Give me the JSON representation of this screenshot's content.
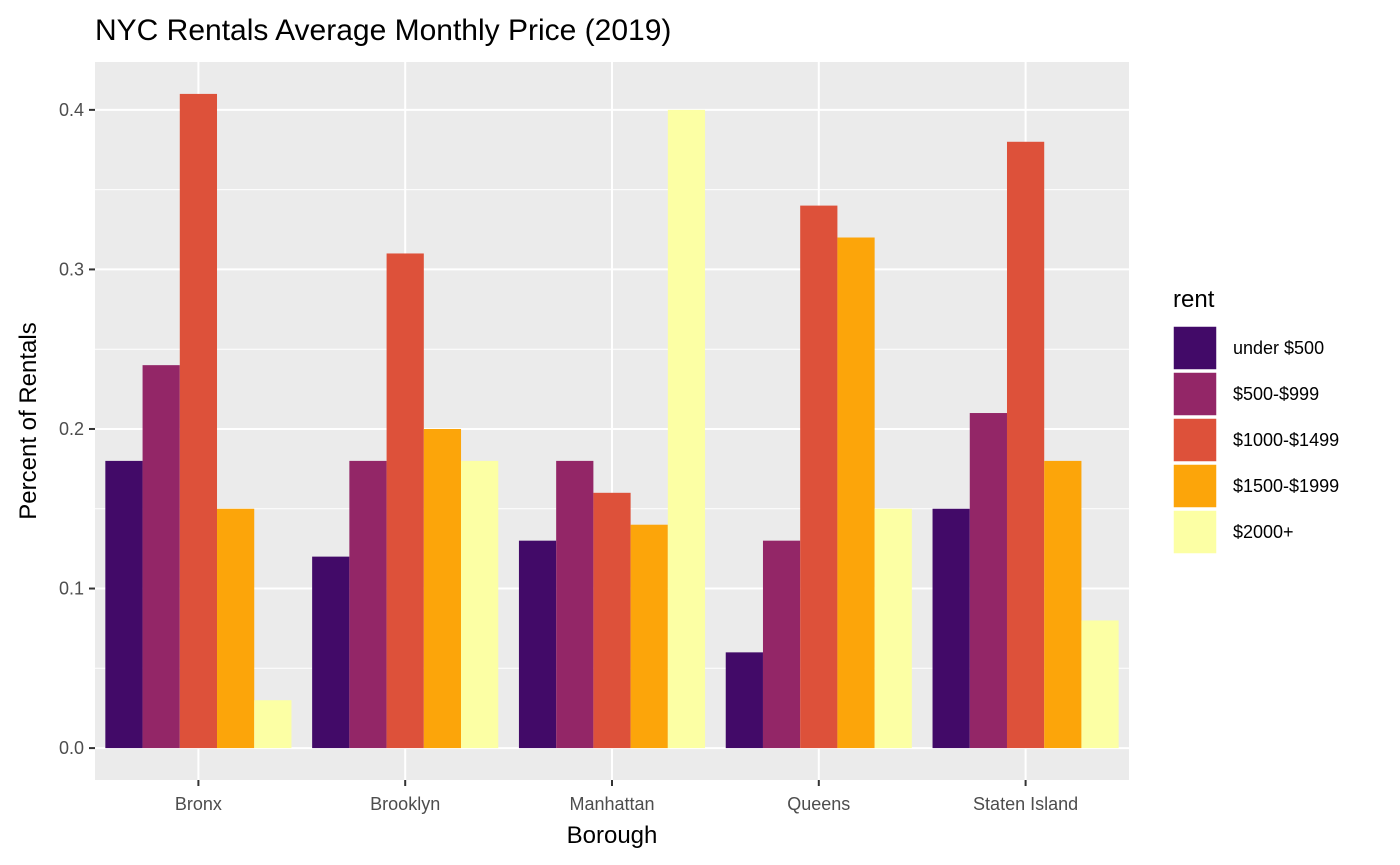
{
  "chart_data": {
    "type": "bar",
    "title": "NYC Rentals Average Monthly Price (2019)",
    "xlabel": "Borough",
    "ylabel": "Percent of Rentals",
    "categories": [
      "Bronx",
      "Brooklyn",
      "Manhattan",
      "Queens",
      "Staten Island"
    ],
    "ylim": [
      -0.02,
      0.43
    ],
    "yticks": [
      0.0,
      0.1,
      0.2,
      0.3,
      0.4
    ],
    "ytick_labels": [
      "0.0",
      "0.1",
      "0.2",
      "0.3",
      "0.4"
    ],
    "grid": true,
    "legend": {
      "title": "rent",
      "position": "right"
    },
    "series": [
      {
        "name": "under $500",
        "color": "#420A68",
        "values": [
          0.18,
          0.12,
          0.13,
          0.06,
          0.15
        ]
      },
      {
        "name": "$500-$999",
        "color": "#932667",
        "values": [
          0.24,
          0.18,
          0.18,
          0.13,
          0.21
        ]
      },
      {
        "name": "$1000-$1499",
        "color": "#DD513A",
        "values": [
          0.41,
          0.31,
          0.16,
          0.34,
          0.38
        ]
      },
      {
        "name": "$1500-$1999",
        "color": "#FCA50A",
        "values": [
          0.15,
          0.2,
          0.14,
          0.32,
          0.18
        ]
      },
      {
        "name": "$2000+",
        "color": "#FCFFA4",
        "values": [
          0.03,
          0.18,
          0.4,
          0.15,
          0.08
        ]
      }
    ],
    "panel_background": "#EBEBEB",
    "grid_color": "#FFFFFF"
  }
}
